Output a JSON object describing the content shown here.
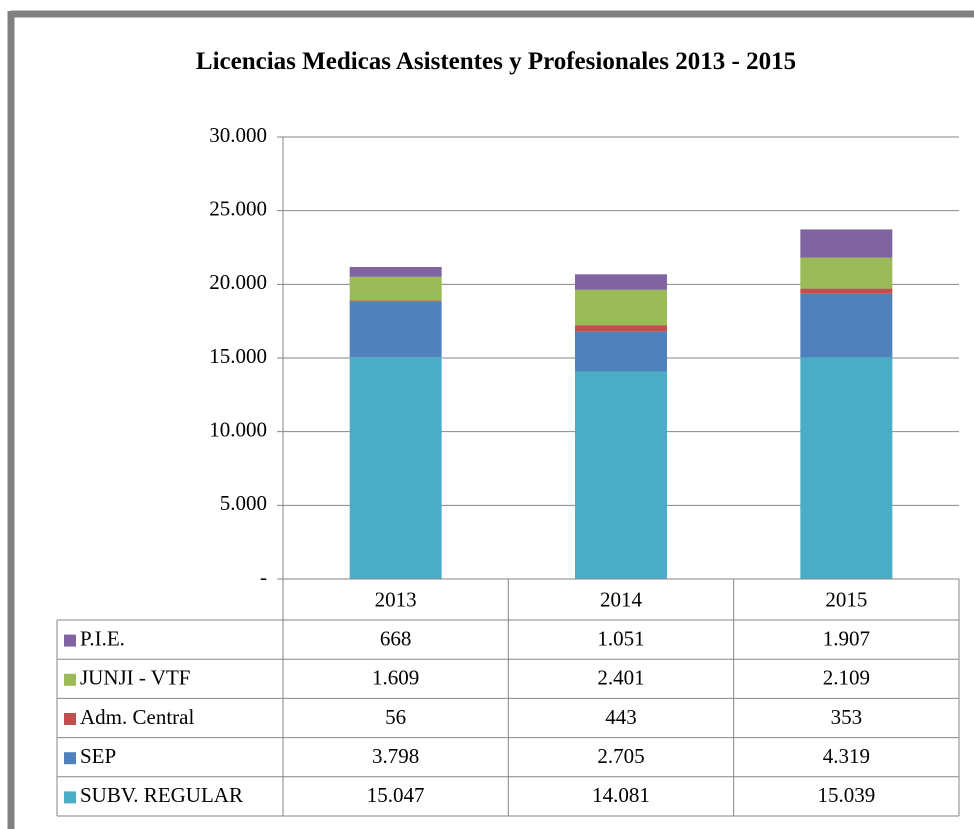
{
  "chart_data": {
    "type": "bar",
    "stacked": true,
    "title": "Licencias Medicas Asistentes y Profesionales 2013 - 2015",
    "categories": [
      "2013",
      "2014",
      "2015"
    ],
    "series": [
      {
        "name": "SUBV. REGULAR",
        "color": "#4bacc6",
        "values": [
          15047,
          14081,
          15039
        ],
        "value_labels": [
          "15.047",
          "14.081",
          "15.039"
        ]
      },
      {
        "name": "SEP",
        "color": "#4f81bd",
        "values": [
          3798,
          2705,
          4319
        ],
        "value_labels": [
          "3.798",
          "2.705",
          "4.319"
        ]
      },
      {
        "name": "Adm. Central",
        "color": "#c0504d",
        "values": [
          56,
          443,
          353
        ],
        "value_labels": [
          "56",
          "443",
          "353"
        ]
      },
      {
        "name": "JUNJI - VTF",
        "color": "#9bbb59",
        "values": [
          1609,
          2401,
          2109
        ],
        "value_labels": [
          "1.609",
          "2.401",
          "2.109"
        ]
      },
      {
        "name": "P.I.E.",
        "color": "#8064a2",
        "values": [
          668,
          1051,
          1907
        ],
        "value_labels": [
          "668",
          "1.051",
          "1.907"
        ]
      }
    ],
    "ylim": [
      0,
      30000
    ],
    "yticks": [
      {
        "value": 0,
        "label": "-"
      },
      {
        "value": 5000,
        "label": "5.000"
      },
      {
        "value": 10000,
        "label": "10.000"
      },
      {
        "value": 15000,
        "label": "15.000"
      },
      {
        "value": 20000,
        "label": "20.000"
      },
      {
        "value": 25000,
        "label": "25.000"
      },
      {
        "value": 30000,
        "label": "30.000"
      }
    ],
    "grid": true,
    "data_table": true
  }
}
